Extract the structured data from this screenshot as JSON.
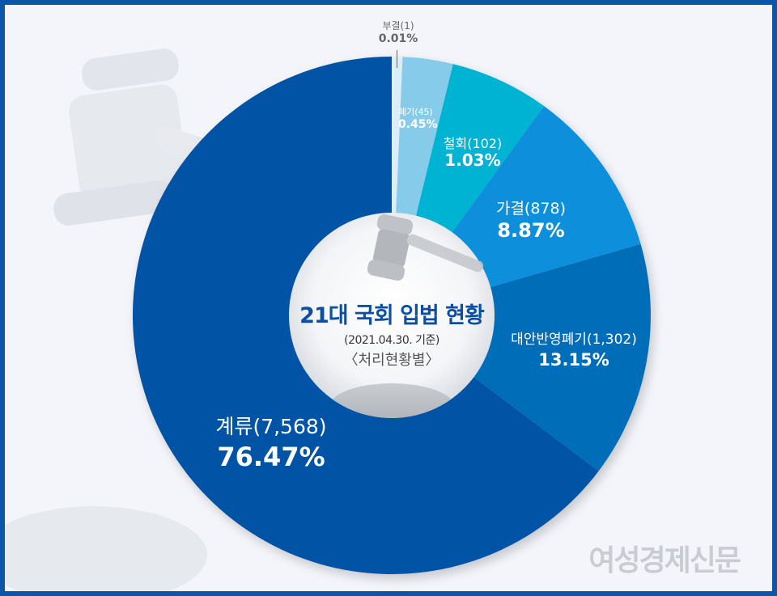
{
  "chart_data": {
    "type": "pie",
    "variant": "donut",
    "title": "21대 국회 입법 현황",
    "subtitle": "(2021.04.30. 기준)",
    "subtitle2": "〈처리현황별〉",
    "categories": [
      "부결",
      "폐기",
      "철회",
      "가결",
      "대안반영폐기",
      "계류"
    ],
    "counts": [
      1,
      45,
      102,
      878,
      1302,
      7568
    ],
    "values": [
      0.01,
      0.45,
      1.03,
      8.87,
      13.15,
      76.47
    ],
    "unit": "%",
    "colors": [
      "#d9eef6",
      "#86cbe9",
      "#00b3d3",
      "#0a8fdb",
      "#046db9",
      "#0552a5"
    ],
    "start_angle": "12 o'clock, clockwise",
    "legend": "none (labels on slices)"
  },
  "labels": [
    {
      "name": "부결(1)",
      "pct": "0.01%"
    },
    {
      "name": "폐기(45)",
      "pct": "0.45%"
    },
    {
      "name": "철회(102)",
      "pct": "1.03%"
    },
    {
      "name": "가결(878)",
      "pct": "8.87%"
    },
    {
      "name": "대안반영폐기(1,302)",
      "pct": "13.15%"
    },
    {
      "name": "계류(7,568)",
      "pct": "76.47%"
    }
  ],
  "center": {
    "title": "21대 국회 입법 현황",
    "date": "(2021.04.30. 기준)",
    "subtitle": "〈처리현황별〉"
  },
  "watermark": "여성경제신문",
  "colors": {
    "frame": "#0b56a8",
    "background": "#f3f5fa",
    "title": "#0b4fa3"
  }
}
